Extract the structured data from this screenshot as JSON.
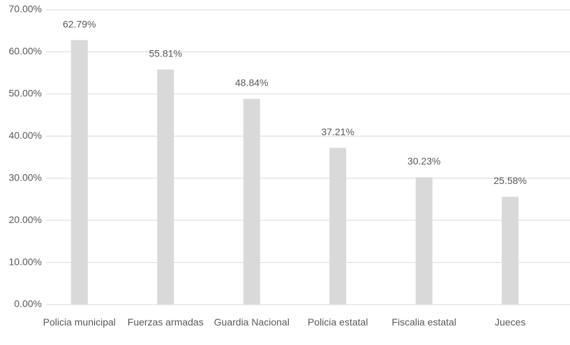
{
  "chart_data": {
    "type": "bar",
    "categories": [
      "Policia municipal",
      "Fuerzas armadas",
      "Guardia Nacional",
      "Policia estatal",
      "Fiscalia estatal",
      "Jueces"
    ],
    "values": [
      62.79,
      55.81,
      48.84,
      37.21,
      30.23,
      25.58
    ],
    "value_labels": [
      "62.79%",
      "55.81%",
      "48.84%",
      "37.21%",
      "30.23%",
      "25.58%"
    ],
    "color": "#d9d9d9",
    "ylim": [
      0,
      70
    ],
    "yticks": [
      {
        "value": 0,
        "label": "0.00%"
      },
      {
        "value": 10,
        "label": "10.00%"
      },
      {
        "value": 20,
        "label": "20.00%"
      },
      {
        "value": 30,
        "label": "30.00%"
      },
      {
        "value": 40,
        "label": "40.00%"
      },
      {
        "value": 50,
        "label": "50.00%"
      },
      {
        "value": 60,
        "label": "60.00%"
      },
      {
        "value": 70,
        "label": "70.00%"
      }
    ],
    "grid": true
  }
}
